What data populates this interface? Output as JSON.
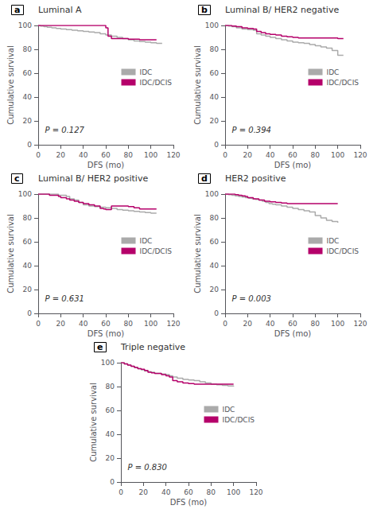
{
  "chart_data": [
    {
      "type": "step",
      "label": "a",
      "title": "Luminal A",
      "annotations": [
        "P = 0.127"
      ],
      "xlabel": "DFS (mo)",
      "ylabel": "Cumulative survival",
      "xlim": [
        0,
        120
      ],
      "ylim": [
        0,
        100
      ],
      "xticks": [
        0,
        20,
        40,
        60,
        80,
        100,
        120
      ],
      "yticks": [
        0,
        20,
        40,
        60,
        80,
        100
      ],
      "grid": false,
      "legend": "right",
      "series": [
        {
          "name": "IDC",
          "color": "#aaaaaa",
          "x": [
            0,
            2,
            5,
            8,
            12,
            16,
            20,
            25,
            30,
            35,
            40,
            45,
            50,
            55,
            60,
            65,
            70,
            75,
            80,
            85,
            90,
            95,
            100,
            105,
            110
          ],
          "values": [
            100,
            99.5,
            99,
            98.5,
            98,
            97.5,
            97,
            96.5,
            96,
            95.5,
            95,
            94.5,
            94,
            93,
            92,
            91,
            90,
            89,
            88,
            87,
            86.5,
            86,
            85.5,
            85,
            85
          ]
        },
        {
          "name": "IDC/DCIS",
          "color": "#b5006a",
          "x": [
            0,
            2,
            5,
            8,
            12,
            16,
            20,
            25,
            30,
            35,
            40,
            45,
            50,
            55,
            60,
            62,
            65,
            70,
            75,
            80,
            85,
            90,
            95,
            100,
            105
          ],
          "values": [
            100,
            100,
            100,
            100,
            100,
            100,
            100,
            100,
            100,
            100,
            100,
            100,
            100,
            100,
            98,
            91,
            89,
            89,
            89,
            88.5,
            88.5,
            88,
            88,
            88,
            88
          ]
        }
      ]
    },
    {
      "type": "step",
      "label": "b",
      "title": "Luminal B/ HER2 negative",
      "annotations": [
        "P = 0.394"
      ],
      "xlabel": "DFS (mo)",
      "ylabel": "Cumulative survival",
      "xlim": [
        0,
        120
      ],
      "ylim": [
        0,
        100
      ],
      "xticks": [
        0,
        20,
        40,
        60,
        80,
        100,
        120
      ],
      "yticks": [
        0,
        20,
        40,
        60,
        80,
        100
      ],
      "grid": false,
      "legend": "right",
      "series": [
        {
          "name": "IDC",
          "color": "#aaaaaa",
          "x": [
            0,
            3,
            6,
            10,
            15,
            20,
            25,
            28,
            32,
            36,
            40,
            45,
            50,
            55,
            60,
            65,
            70,
            75,
            80,
            85,
            90,
            95,
            100,
            105
          ],
          "values": [
            100,
            99.5,
            99,
            98,
            97,
            96.5,
            96,
            93,
            92,
            91,
            90,
            89,
            88,
            87,
            86,
            85.5,
            85,
            84,
            83,
            82,
            81,
            79,
            75,
            75
          ]
        },
        {
          "name": "IDC/DCIS",
          "color": "#b5006a",
          "x": [
            0,
            3,
            6,
            10,
            15,
            20,
            25,
            28,
            32,
            36,
            40,
            45,
            50,
            55,
            60,
            65,
            70,
            75,
            80,
            85,
            90,
            95,
            100,
            105
          ],
          "values": [
            100,
            100,
            99.5,
            99,
            98,
            97.5,
            97,
            95,
            94,
            93,
            92.5,
            92,
            91,
            90.5,
            90,
            89.5,
            89.5,
            89.5,
            89.5,
            89.5,
            89.5,
            89.5,
            89,
            89
          ]
        }
      ]
    },
    {
      "type": "step",
      "label": "c",
      "title": "Luminal B/ HER2 positive",
      "annotations": [
        "P = 0.631"
      ],
      "xlabel": "DFS (mo)",
      "ylabel": "Cumulative survival",
      "xlim": [
        0,
        120
      ],
      "ylim": [
        0,
        100
      ],
      "xticks": [
        0,
        20,
        40,
        60,
        80,
        100,
        120
      ],
      "yticks": [
        0,
        20,
        40,
        60,
        80,
        100
      ],
      "grid": false,
      "legend": "right",
      "series": [
        {
          "name": "IDC",
          "color": "#aaaaaa",
          "x": [
            0,
            5,
            10,
            15,
            18,
            20,
            25,
            28,
            32,
            36,
            40,
            45,
            50,
            55,
            60,
            65,
            70,
            75,
            80,
            85,
            90,
            95,
            100,
            105
          ],
          "values": [
            100,
            100,
            100,
            100,
            99,
            99,
            98,
            96,
            95,
            93,
            91,
            90,
            89.5,
            89,
            88.5,
            88,
            87,
            86.5,
            86,
            85.5,
            85,
            84.5,
            84,
            84
          ]
        },
        {
          "name": "IDC/DCIS",
          "color": "#b5006a",
          "x": [
            0,
            5,
            10,
            15,
            18,
            20,
            25,
            28,
            32,
            36,
            40,
            45,
            50,
            55,
            58,
            60,
            65,
            70,
            75,
            80,
            85,
            90,
            95,
            100,
            105
          ],
          "values": [
            100,
            100,
            99,
            99,
            98,
            97,
            96,
            95,
            94,
            93,
            92,
            91,
            90,
            88,
            87.5,
            87,
            90,
            90,
            90,
            89.5,
            88.5,
            87.5,
            87.5,
            87.5,
            87.5
          ]
        }
      ]
    },
    {
      "type": "step",
      "label": "d",
      "title": "HER2 positive",
      "annotations": [
        "P = 0.003"
      ],
      "xlabel": "DFS (mo)",
      "ylabel": "Cumulative survival",
      "xlim": [
        0,
        120
      ],
      "ylim": [
        0,
        100
      ],
      "xticks": [
        0,
        20,
        40,
        60,
        80,
        100,
        120
      ],
      "yticks": [
        0,
        20,
        40,
        60,
        80,
        100
      ],
      "grid": false,
      "legend": "right",
      "series": [
        {
          "name": "IDC",
          "color": "#aaaaaa",
          "x": [
            0,
            3,
            6,
            9,
            12,
            15,
            18,
            21,
            24,
            27,
            30,
            33,
            36,
            39,
            42,
            45,
            50,
            55,
            60,
            65,
            70,
            75,
            80,
            85,
            90,
            95,
            100
          ],
          "values": [
            100,
            99.5,
            99,
            98.5,
            98,
            97.5,
            97,
            96.5,
            96,
            95.5,
            95,
            94,
            93,
            92,
            91.5,
            91,
            90,
            89,
            88,
            87,
            86,
            85,
            82,
            80,
            78,
            77,
            76
          ]
        },
        {
          "name": "IDC/DCIS",
          "color": "#b5006a",
          "x": [
            0,
            3,
            6,
            9,
            12,
            15,
            18,
            20,
            25,
            30,
            35,
            40,
            45,
            50,
            55,
            60,
            65,
            70,
            75,
            80,
            85,
            90,
            95,
            100
          ],
          "values": [
            100,
            100,
            100,
            99.5,
            99,
            98.5,
            98,
            97,
            96,
            95,
            94,
            93.5,
            93,
            92.5,
            92,
            92,
            92,
            92,
            92,
            92,
            92,
            92,
            92,
            92
          ]
        }
      ]
    },
    {
      "type": "step",
      "label": "e",
      "title": "Triple negative",
      "annotations": [
        "P = 0.830"
      ],
      "xlabel": "DFS (mo)",
      "ylabel": "Cumulative survival",
      "xlim": [
        0,
        120
      ],
      "ylim": [
        0,
        100
      ],
      "xticks": [
        0,
        20,
        40,
        60,
        80,
        100,
        120
      ],
      "yticks": [
        0,
        20,
        40,
        60,
        80,
        100
      ],
      "grid": false,
      "legend": "right",
      "series": [
        {
          "name": "IDC",
          "color": "#aaaaaa",
          "x": [
            0,
            3,
            6,
            9,
            12,
            15,
            18,
            21,
            24,
            27,
            30,
            33,
            36,
            40,
            43,
            46,
            50,
            55,
            60,
            65,
            70,
            75,
            80,
            85,
            90,
            95,
            100
          ],
          "values": [
            100,
            99,
            98,
            97,
            96,
            95,
            94,
            93,
            92.5,
            92,
            91,
            91,
            90.5,
            90,
            89,
            88,
            87,
            86,
            85.5,
            85,
            84,
            83,
            82,
            81.5,
            81,
            80.5,
            80
          ]
        },
        {
          "name": "IDC/DCIS",
          "color": "#b5006a",
          "x": [
            0,
            3,
            6,
            9,
            12,
            15,
            18,
            21,
            24,
            27,
            30,
            33,
            36,
            40,
            43,
            46,
            50,
            55,
            60,
            65,
            70,
            75,
            80,
            85,
            90,
            95,
            100
          ],
          "values": [
            100,
            99,
            98,
            97,
            96,
            95,
            94.5,
            93.5,
            92,
            91.5,
            91,
            91,
            90,
            89,
            88,
            85,
            84,
            83,
            82.5,
            82,
            82,
            82,
            82,
            82,
            82,
            82,
            82
          ]
        }
      ]
    }
  ]
}
